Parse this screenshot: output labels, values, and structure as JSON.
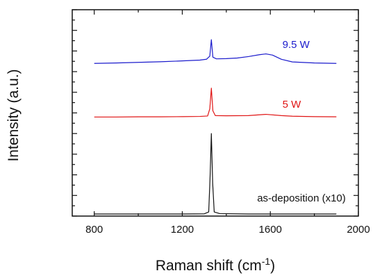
{
  "chart_data": {
    "type": "line",
    "title": "",
    "xlabel": "Raman shift (cm",
    "xlabel_sup": "-1",
    "xlabel_end": ")",
    "ylabel": "Intensity (a.u.)",
    "xlim": [
      700,
      2000
    ],
    "ylim": [
      0,
      10
    ],
    "x_ticks": [
      800,
      1200,
      1600,
      2000
    ],
    "x_tick_labels": [
      "800",
      "1200",
      "1600",
      "2000"
    ],
    "y_tick_labels_shown": false,
    "grid": false,
    "series": [
      {
        "name": "9.5 W",
        "color": "#1a1acc",
        "x": [
          800,
          900,
          1000,
          1100,
          1200,
          1280,
          1310,
          1325,
          1332,
          1339,
          1355,
          1400,
          1450,
          1500,
          1550,
          1580,
          1610,
          1650,
          1700,
          1800,
          1900
        ],
        "y": [
          7.4,
          7.42,
          7.45,
          7.48,
          7.52,
          7.56,
          7.6,
          7.75,
          8.55,
          7.7,
          7.62,
          7.63,
          7.66,
          7.73,
          7.82,
          7.86,
          7.8,
          7.6,
          7.47,
          7.42,
          7.4
        ]
      },
      {
        "name": "5 W",
        "color": "#e01414",
        "x": [
          800,
          900,
          1000,
          1100,
          1200,
          1280,
          1315,
          1325,
          1332,
          1339,
          1350,
          1400,
          1500,
          1580,
          1650,
          1700,
          1800,
          1900
        ],
        "y": [
          4.8,
          4.8,
          4.81,
          4.81,
          4.82,
          4.83,
          4.85,
          5.2,
          6.2,
          5.1,
          4.87,
          4.86,
          4.87,
          4.93,
          4.87,
          4.84,
          4.82,
          4.81
        ]
      },
      {
        "name": "as-deposition (x10)",
        "color": "#111111",
        "x": [
          800,
          1000,
          1200,
          1300,
          1320,
          1326,
          1332,
          1338,
          1345,
          1370,
          1500,
          1700,
          1900
        ],
        "y": [
          0.1,
          0.1,
          0.1,
          0.11,
          0.2,
          1.8,
          4.0,
          1.6,
          0.2,
          0.12,
          0.1,
          0.1,
          0.1
        ]
      }
    ],
    "annotations": [
      {
        "text": "9.5 W",
        "x": 1655,
        "y": 8.15,
        "color": "#1a1acc"
      },
      {
        "text": "5 W",
        "x": 1655,
        "y": 5.25,
        "color": "#e01414"
      },
      {
        "text": "as-deposition (x10)",
        "x": 1540,
        "y": 0.7,
        "color": "#111111"
      }
    ]
  }
}
